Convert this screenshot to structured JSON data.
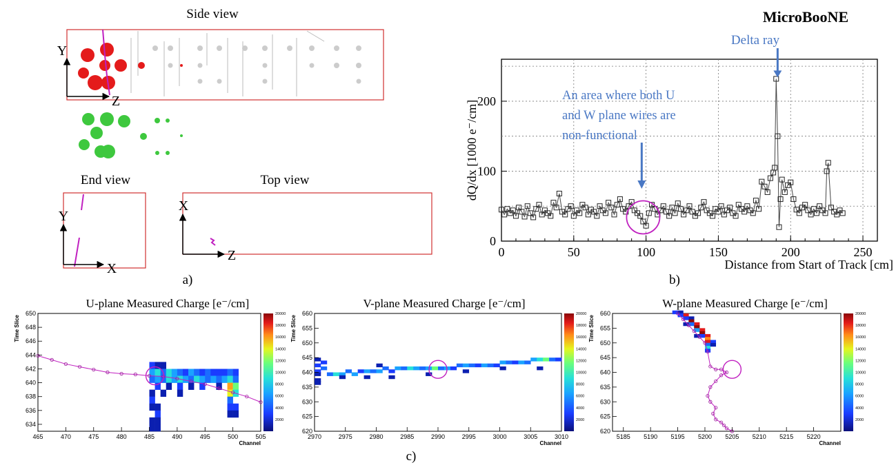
{
  "panel_a": {
    "side_view_title": "Side view",
    "end_view_title": "End view",
    "top_view_title": "Top view",
    "axis_y": "Y",
    "axis_z": "Z",
    "axis_x": "X",
    "caption": "a)"
  },
  "panel_b": {
    "caption": "b)",
    "experiment_label": "MicroBooNE",
    "delta_ray_label": "Delta ray",
    "annotation_lines": [
      "An area where both U",
      "and W plane wires are",
      "non-functional"
    ]
  },
  "panel_c": {
    "caption": "c)"
  },
  "colors": {
    "accent_blue": "#4a78c4",
    "magenta": "#c020c0",
    "red_frame": "#d03030",
    "hit_red": "#e41b1b",
    "hit_green": "#3ec83e"
  },
  "chart_data": [
    {
      "type": "line",
      "title": "",
      "xlabel": "Distance from Start of Track [cm]",
      "ylabel": "dQ/dx [1000 e⁻/cm]",
      "xlim": [
        0,
        260
      ],
      "ylim": [
        0,
        260
      ],
      "xticks": [
        0,
        50,
        100,
        150,
        200,
        250
      ],
      "yticks": [
        0,
        100,
        200
      ],
      "grid": true,
      "series": [
        {
          "x": [
            0,
            2,
            4,
            6,
            8,
            10,
            12,
            14,
            16,
            18,
            20,
            22,
            24,
            26,
            28,
            30,
            32,
            34,
            36,
            38,
            40,
            42,
            44,
            46,
            48,
            50,
            52,
            54,
            56,
            58,
            60,
            62,
            64,
            66,
            68,
            70,
            72,
            74,
            76,
            78,
            80,
            82,
            84,
            86,
            88,
            90,
            92,
            94,
            96,
            98,
            100,
            102,
            104,
            106,
            108,
            110,
            112,
            114,
            116,
            118,
            120,
            122,
            124,
            126,
            128,
            130,
            132,
            134,
            136,
            138,
            140,
            142,
            144,
            146,
            148,
            150,
            152,
            154,
            156,
            158,
            160,
            162,
            164,
            166,
            168,
            170,
            172,
            174,
            176,
            178,
            180,
            182,
            184,
            186,
            188,
            189,
            190,
            191,
            192,
            193,
            194,
            196,
            198,
            200,
            202,
            204,
            206,
            208,
            210,
            212,
            214,
            216,
            218,
            220,
            222,
            224,
            225,
            226,
            228,
            230,
            232,
            234,
            236
          ],
          "y": [
            45,
            38,
            46,
            40,
            44,
            36,
            48,
            42,
            35,
            50,
            40,
            34,
            46,
            52,
            38,
            44,
            40,
            36,
            55,
            48,
            68,
            42,
            38,
            46,
            50,
            36,
            44,
            40,
            52,
            48,
            38,
            45,
            42,
            36,
            50,
            44,
            40,
            55,
            48,
            38,
            52,
            60,
            46,
            42,
            50,
            56,
            44,
            40,
            36,
            28,
            22,
            40,
            52,
            46,
            38,
            44,
            50,
            42,
            36,
            48,
            40,
            54,
            46,
            38,
            44,
            50,
            42,
            36,
            40,
            48,
            56,
            44,
            40,
            36,
            46,
            42,
            50,
            38,
            44,
            48,
            40,
            36,
            52,
            46,
            42,
            50,
            44,
            40,
            58,
            46,
            85,
            78,
            70,
            90,
            98,
            105,
            232,
            150,
            20,
            60,
            88,
            70,
            80,
            84,
            60,
            45,
            40,
            48,
            52,
            44,
            38,
            46,
            40,
            50,
            44,
            40,
            100,
            112,
            48,
            42,
            38,
            44,
            40
          ]
        }
      ]
    },
    {
      "type": "heatmap",
      "title": "U-plane Measured Charge [e⁻/cm]",
      "xlabel": "Channel",
      "ylabel": "Time Slice",
      "xlim": [
        465,
        505
      ],
      "ylim": [
        633,
        650
      ],
      "xticks": [
        465,
        470,
        475,
        480,
        485,
        490,
        495,
        500,
        505
      ],
      "yticks": [
        634,
        636,
        638,
        640,
        642,
        644,
        646,
        648,
        650
      ],
      "colorbar_ticks": [
        2000,
        4000,
        6000,
        8000,
        10000,
        12000,
        14000,
        16000,
        18000,
        20000
      ],
      "track_points": {
        "x": [
          465,
          467.5,
          470,
          472.5,
          475,
          477.5,
          480,
          482.5,
          485,
          487.5,
          490,
          492.5,
          495,
          497.5,
          500,
          502.5,
          505
        ],
        "y": [
          643.9,
          643.3,
          642.7,
          642.3,
          641.9,
          641.5,
          641.3,
          641.2,
          641.0,
          640.9,
          640.6,
          640.2,
          639.8,
          639.2,
          638.6,
          638.0,
          637.2
        ]
      },
      "circle_center": [
        486,
        641
      ]
    },
    {
      "type": "heatmap",
      "title": "V-plane Measured Charge [e⁻/cm]",
      "xlabel": "Channel",
      "ylabel": "Time Slice",
      "xlim": [
        2970,
        3010
      ],
      "ylim": [
        620,
        660
      ],
      "xticks": [
        2970,
        2975,
        2980,
        2985,
        2990,
        2995,
        3000,
        3005,
        3010
      ],
      "yticks": [
        620,
        625,
        630,
        635,
        640,
        645,
        650,
        655,
        660
      ],
      "colorbar_ticks": [
        2000,
        4000,
        6000,
        8000,
        10000,
        12000,
        14000,
        16000,
        18000,
        20000
      ],
      "circle_center": [
        2990,
        641
      ]
    },
    {
      "type": "heatmap",
      "title": "W-plane Measured Charge [e⁻/cm]",
      "xlabel": "Channel",
      "ylabel": "Time Slice",
      "xlim": [
        5183,
        5225
      ],
      "ylim": [
        620,
        660
      ],
      "xticks": [
        5185,
        5190,
        5195,
        5200,
        5205,
        5210,
        5215,
        5220
      ],
      "yticks": [
        620,
        625,
        630,
        635,
        640,
        645,
        650,
        655,
        660
      ],
      "colorbar_ticks": [
        2000,
        4000,
        6000,
        8000,
        10000,
        12000,
        14000,
        16000,
        18000,
        20000
      ],
      "track_points": {
        "x": [
          5195,
          5196,
          5197,
          5198,
          5199,
          5200,
          5200.5,
          5201,
          5202,
          5203,
          5204,
          5203,
          5202,
          5201,
          5200.5,
          5201,
          5202,
          5201.5,
          5202,
          5203,
          5203.5,
          5204,
          5205
        ],
        "y": [
          660,
          658,
          656,
          654,
          652,
          650,
          647,
          642,
          641,
          641,
          640,
          639,
          637,
          635,
          632,
          630,
          628,
          626,
          624,
          623,
          622,
          621,
          620
        ]
      },
      "circle_center": [
        5205,
        641
      ]
    }
  ]
}
